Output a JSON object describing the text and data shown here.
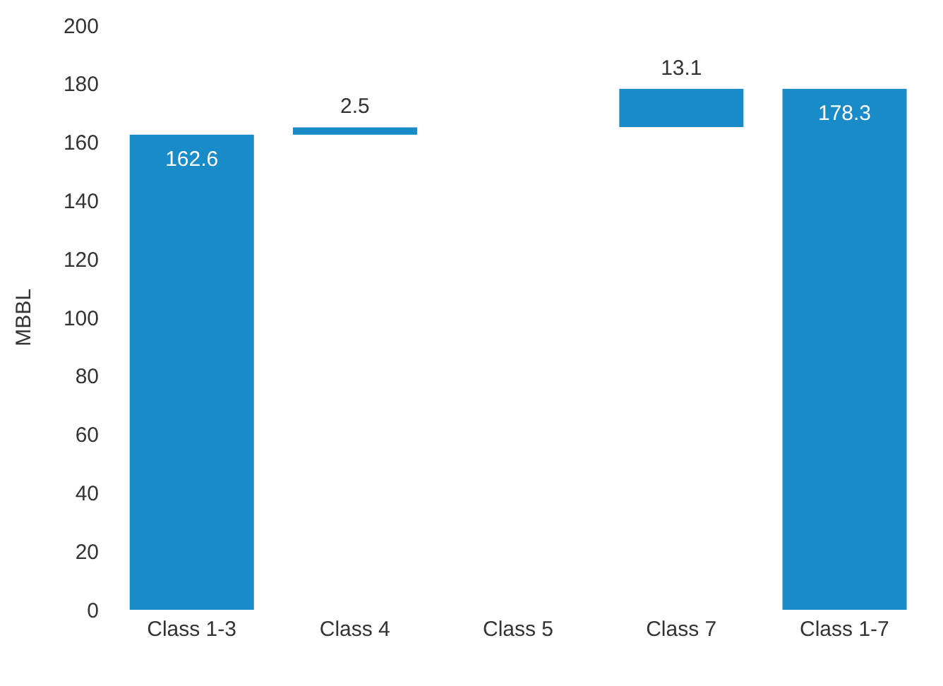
{
  "chart_data": {
    "type": "bar",
    "categories": [
      "Class 1-3",
      "Class 4",
      "Class 5",
      "Class 7",
      "Class 1-7"
    ],
    "values": [
      162.6,
      2.5,
      null,
      13.1,
      178.3
    ],
    "base": [
      0,
      162.6,
      null,
      165.2,
      0
    ],
    "color": "#1a8bc9",
    "ylabel": "MBBL",
    "ylim": [
      0,
      200
    ],
    "yticks": [
      0,
      20,
      40,
      60,
      80,
      100,
      120,
      140,
      160,
      180,
      200
    ],
    "grid": false,
    "data_labels": true
  }
}
